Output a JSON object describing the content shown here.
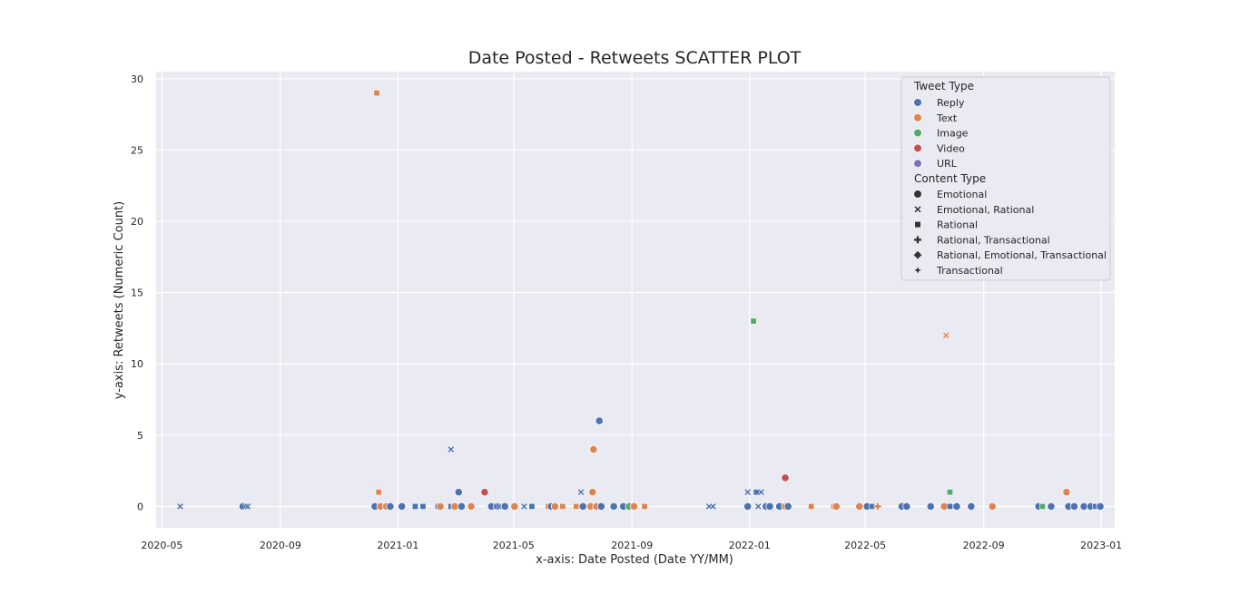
{
  "chart_data": {
    "type": "scatter",
    "title": "Date Posted - Retweets SCATTER PLOT",
    "xlabel": "x-axis: Date Posted (Date YY/MM)",
    "ylabel": "y-axis: Retweets (Numeric Count)",
    "x_tick_labels": [
      "2020-05",
      "2020-09",
      "2021-01",
      "2021-05",
      "2021-09",
      "2022-01",
      "2022-05",
      "2022-09",
      "2023-01"
    ],
    "y_ticks": [
      0,
      5,
      10,
      15,
      20,
      25,
      30
    ],
    "ylim": [
      -1.5,
      30.5
    ],
    "xlim": [
      "2020-04-25",
      "2023-01-15"
    ],
    "grid": true,
    "legend_position": "top-right",
    "legend": {
      "tweet_type_title": "Tweet Type",
      "tweet_types": [
        {
          "name": "Reply",
          "color": "#4c72b0"
        },
        {
          "name": "Text",
          "color": "#dd8452"
        },
        {
          "name": "Image",
          "color": "#55a868"
        },
        {
          "name": "Video",
          "color": "#c44e52"
        },
        {
          "name": "URL",
          "color": "#8172b3"
        }
      ],
      "content_type_title": "Content Type",
      "content_types": [
        {
          "name": "Emotional",
          "marker": "circle"
        },
        {
          "name": "Emotional, Rational",
          "marker": "x"
        },
        {
          "name": "Rational",
          "marker": "square"
        },
        {
          "name": "Rational, Transactional",
          "marker": "plus"
        },
        {
          "name": "Rational, Emotional, Transactional",
          "marker": "diamond"
        },
        {
          "name": "Transactional",
          "marker": "star"
        }
      ]
    },
    "points": [
      {
        "date": "2020-05-20",
        "retweets": 0,
        "tweet_type": "Reply",
        "content_type": "Emotional, Rational"
      },
      {
        "date": "2020-07-24",
        "retweets": 0,
        "tweet_type": "Reply",
        "content_type": "Emotional"
      },
      {
        "date": "2020-07-27",
        "retweets": 0,
        "tweet_type": "Reply",
        "content_type": "Emotional, Rational"
      },
      {
        "date": "2020-07-29",
        "retweets": 0,
        "tweet_type": "Reply",
        "content_type": "Emotional, Rational"
      },
      {
        "date": "2020-12-10",
        "retweets": 29,
        "tweet_type": "Text",
        "content_type": "Rational"
      },
      {
        "date": "2020-12-08",
        "retweets": 0,
        "tweet_type": "Reply",
        "content_type": "Emotional"
      },
      {
        "date": "2020-12-12",
        "retweets": 1,
        "tweet_type": "Text",
        "content_type": "Rational"
      },
      {
        "date": "2020-12-14",
        "retweets": 0,
        "tweet_type": "Text",
        "content_type": "Emotional"
      },
      {
        "date": "2020-12-20",
        "retweets": 0,
        "tweet_type": "Text",
        "content_type": "Emotional"
      },
      {
        "date": "2020-12-24",
        "retweets": 0,
        "tweet_type": "Reply",
        "content_type": "Emotional"
      },
      {
        "date": "2021-01-05",
        "retweets": 0,
        "tweet_type": "Reply",
        "content_type": "Emotional"
      },
      {
        "date": "2021-01-19",
        "retweets": 0,
        "tweet_type": "Reply",
        "content_type": "Rational"
      },
      {
        "date": "2021-01-27",
        "retweets": 0,
        "tweet_type": "Reply",
        "content_type": "Rational"
      },
      {
        "date": "2021-02-12",
        "retweets": 0,
        "tweet_type": "Reply",
        "content_type": "Emotional"
      },
      {
        "date": "2021-02-14",
        "retweets": 0,
        "tweet_type": "Text",
        "content_type": "Emotional"
      },
      {
        "date": "2021-02-25",
        "retweets": 4,
        "tweet_type": "Reply",
        "content_type": "Emotional, Rational"
      },
      {
        "date": "2021-02-25",
        "retweets": 0,
        "tweet_type": "Reply",
        "content_type": "Rational"
      },
      {
        "date": "2021-03-01",
        "retweets": 0,
        "tweet_type": "Text",
        "content_type": "Emotional"
      },
      {
        "date": "2021-03-05",
        "retweets": 1,
        "tweet_type": "Reply",
        "content_type": "Emotional"
      },
      {
        "date": "2021-03-08",
        "retweets": 0,
        "tweet_type": "Reply",
        "content_type": "Emotional"
      },
      {
        "date": "2021-03-18",
        "retweets": 0,
        "tweet_type": "Text",
        "content_type": "Emotional"
      },
      {
        "date": "2021-04-01",
        "retweets": 1,
        "tweet_type": "Video",
        "content_type": "Emotional"
      },
      {
        "date": "2021-04-08",
        "retweets": 0,
        "tweet_type": "Reply",
        "content_type": "Emotional"
      },
      {
        "date": "2021-04-14",
        "retweets": 0,
        "tweet_type": "Reply",
        "content_type": "Emotional"
      },
      {
        "date": "2021-04-16",
        "retweets": 0,
        "tweet_type": "Reply",
        "content_type": "Emotional, Rational"
      },
      {
        "date": "2021-04-22",
        "retweets": 0,
        "tweet_type": "Reply",
        "content_type": "Emotional"
      },
      {
        "date": "2021-05-02",
        "retweets": 0,
        "tweet_type": "Text",
        "content_type": "Emotional"
      },
      {
        "date": "2021-05-12",
        "retweets": 0,
        "tweet_type": "Reply",
        "content_type": "Emotional, Rational"
      },
      {
        "date": "2021-05-20",
        "retweets": 0,
        "tweet_type": "Reply",
        "content_type": "Rational"
      },
      {
        "date": "2021-06-06",
        "retweets": 0,
        "tweet_type": "Text",
        "content_type": "Rational"
      },
      {
        "date": "2021-06-09",
        "retweets": 0,
        "tweet_type": "Reply",
        "content_type": "Emotional"
      },
      {
        "date": "2021-06-13",
        "retweets": 0,
        "tweet_type": "Text",
        "content_type": "Emotional"
      },
      {
        "date": "2021-06-21",
        "retweets": 0,
        "tweet_type": "Text",
        "content_type": "Rational"
      },
      {
        "date": "2021-07-05",
        "retweets": 0,
        "tweet_type": "Text",
        "content_type": "Rational"
      },
      {
        "date": "2021-07-10",
        "retweets": 1,
        "tweet_type": "Reply",
        "content_type": "Emotional, Rational"
      },
      {
        "date": "2021-07-12",
        "retweets": 0,
        "tweet_type": "Reply",
        "content_type": "Emotional"
      },
      {
        "date": "2021-07-20",
        "retweets": 0,
        "tweet_type": "Text",
        "content_type": "Emotional"
      },
      {
        "date": "2021-07-22",
        "retweets": 1,
        "tweet_type": "Text",
        "content_type": "Emotional"
      },
      {
        "date": "2021-07-23",
        "retweets": 4,
        "tweet_type": "Text",
        "content_type": "Emotional"
      },
      {
        "date": "2021-07-26",
        "retweets": 0,
        "tweet_type": "Text",
        "content_type": "Emotional"
      },
      {
        "date": "2021-07-29",
        "retweets": 6,
        "tweet_type": "Reply",
        "content_type": "Emotional"
      },
      {
        "date": "2021-07-31",
        "retweets": 0,
        "tweet_type": "Reply",
        "content_type": "Emotional"
      },
      {
        "date": "2021-08-13",
        "retweets": 0,
        "tweet_type": "Reply",
        "content_type": "Emotional"
      },
      {
        "date": "2021-08-23",
        "retweets": 0,
        "tweet_type": "Reply",
        "content_type": "Emotional"
      },
      {
        "date": "2021-08-29",
        "retweets": 0,
        "tweet_type": "Image",
        "content_type": "Emotional"
      },
      {
        "date": "2021-09-03",
        "retweets": 0,
        "tweet_type": "Text",
        "content_type": "Emotional"
      },
      {
        "date": "2021-09-14",
        "retweets": 0,
        "tweet_type": "Text",
        "content_type": "Rational"
      },
      {
        "date": "2021-11-20",
        "retweets": 0,
        "tweet_type": "Reply",
        "content_type": "Emotional, Rational"
      },
      {
        "date": "2021-11-24",
        "retweets": 0,
        "tweet_type": "Reply",
        "content_type": "Emotional, Rational"
      },
      {
        "date": "2021-12-30",
        "retweets": 1,
        "tweet_type": "Reply",
        "content_type": "Emotional, Rational"
      },
      {
        "date": "2021-12-30",
        "retweets": 0,
        "tweet_type": "Reply",
        "content_type": "Emotional"
      },
      {
        "date": "2022-01-05",
        "retweets": 13,
        "tweet_type": "Image",
        "content_type": "Rational"
      },
      {
        "date": "2022-01-08",
        "retweets": 1,
        "tweet_type": "Reply",
        "content_type": "Rational"
      },
      {
        "date": "2022-01-13",
        "retweets": 1,
        "tweet_type": "Reply",
        "content_type": "Emotional, Rational"
      },
      {
        "date": "2022-01-10",
        "retweets": 0,
        "tweet_type": "Reply",
        "content_type": "Emotional, Rational"
      },
      {
        "date": "2022-01-18",
        "retweets": 0,
        "tweet_type": "Reply",
        "content_type": "Emotional"
      },
      {
        "date": "2022-01-22",
        "retweets": 0,
        "tweet_type": "Reply",
        "content_type": "Emotional"
      },
      {
        "date": "2022-02-01",
        "retweets": 0,
        "tweet_type": "Reply",
        "content_type": "Emotional"
      },
      {
        "date": "2022-02-07",
        "retweets": 2,
        "tweet_type": "Video",
        "content_type": "Emotional"
      },
      {
        "date": "2022-02-07",
        "retweets": 0,
        "tweet_type": "Text",
        "content_type": "Emotional"
      },
      {
        "date": "2022-02-10",
        "retweets": 0,
        "tweet_type": "Reply",
        "content_type": "Emotional"
      },
      {
        "date": "2022-03-06",
        "retweets": 0,
        "tweet_type": "Text",
        "content_type": "Rational"
      },
      {
        "date": "2022-03-30",
        "retweets": 0,
        "tweet_type": "Text",
        "content_type": "Emotional"
      },
      {
        "date": "2022-04-01",
        "retweets": 0,
        "tweet_type": "Text",
        "content_type": "Emotional"
      },
      {
        "date": "2022-04-25",
        "retweets": 0,
        "tweet_type": "Text",
        "content_type": "Emotional"
      },
      {
        "date": "2022-05-03",
        "retweets": 0,
        "tweet_type": "Reply",
        "content_type": "Emotional"
      },
      {
        "date": "2022-05-08",
        "retweets": 0,
        "tweet_type": "Reply",
        "content_type": "Rational"
      },
      {
        "date": "2022-05-14",
        "retweets": 0,
        "tweet_type": "Text",
        "content_type": "Rational, Transactional"
      },
      {
        "date": "2022-06-08",
        "retweets": 0,
        "tweet_type": "Reply",
        "content_type": "Emotional"
      },
      {
        "date": "2022-06-13",
        "retweets": 0,
        "tweet_type": "Reply",
        "content_type": "Emotional"
      },
      {
        "date": "2022-07-08",
        "retweets": 0,
        "tweet_type": "Reply",
        "content_type": "Emotional"
      },
      {
        "date": "2022-07-22",
        "retweets": 0,
        "tweet_type": "Text",
        "content_type": "Emotional"
      },
      {
        "date": "2022-07-24",
        "retweets": 12,
        "tweet_type": "Text",
        "content_type": "Emotional, Rational"
      },
      {
        "date": "2022-07-28",
        "retweets": 1,
        "tweet_type": "Image",
        "content_type": "Rational"
      },
      {
        "date": "2022-07-28",
        "retweets": 0,
        "tweet_type": "Reply",
        "content_type": "Rational"
      },
      {
        "date": "2022-08-04",
        "retweets": 0,
        "tweet_type": "Reply",
        "content_type": "Emotional"
      },
      {
        "date": "2022-08-19",
        "retweets": 0,
        "tweet_type": "Reply",
        "content_type": "Emotional"
      },
      {
        "date": "2022-09-10",
        "retweets": 0,
        "tweet_type": "Text",
        "content_type": "Emotional"
      },
      {
        "date": "2022-10-28",
        "retweets": 0,
        "tweet_type": "Reply",
        "content_type": "Emotional"
      },
      {
        "date": "2022-11-01",
        "retweets": 0,
        "tweet_type": "Image",
        "content_type": "Rational"
      },
      {
        "date": "2022-11-10",
        "retweets": 0,
        "tweet_type": "Reply",
        "content_type": "Emotional"
      },
      {
        "date": "2022-11-26",
        "retweets": 1,
        "tweet_type": "Text",
        "content_type": "Emotional"
      },
      {
        "date": "2022-11-28",
        "retweets": 0,
        "tweet_type": "Reply",
        "content_type": "Emotional"
      },
      {
        "date": "2022-12-04",
        "retweets": 0,
        "tweet_type": "Reply",
        "content_type": "Emotional"
      },
      {
        "date": "2022-12-14",
        "retweets": 0,
        "tweet_type": "Reply",
        "content_type": "Emotional"
      },
      {
        "date": "2022-12-21",
        "retweets": 0,
        "tweet_type": "Reply",
        "content_type": "Emotional"
      },
      {
        "date": "2022-12-26",
        "retweets": 0,
        "tweet_type": "Reply",
        "content_type": "Rational"
      },
      {
        "date": "2022-12-31",
        "retweets": 0,
        "tweet_type": "Reply",
        "content_type": "Emotional"
      }
    ]
  }
}
